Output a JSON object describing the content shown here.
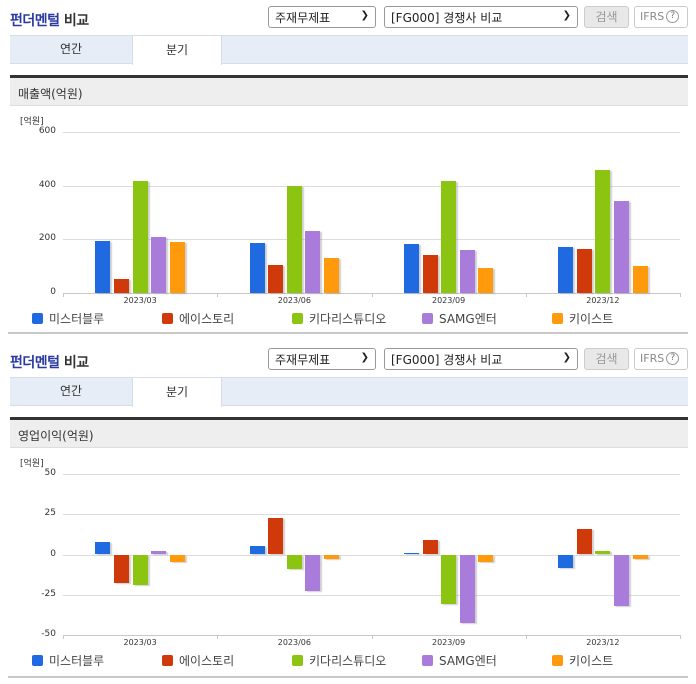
{
  "panels": [
    {
      "title_blue": "펀더멘털",
      "title_dark": "비교",
      "select1": "주재무제표",
      "select2": "[FG000] 경쟁사 비교",
      "search_label": "검색",
      "ifrs_label": "IFRS",
      "help_glyph": "?",
      "tabs": [
        {
          "label": "연간",
          "active": false
        },
        {
          "label": "분기",
          "active": true
        }
      ],
      "section_title": "매출액(억원)",
      "unit": "[억원]",
      "y_ticks": [
        "600",
        "400",
        "200",
        "0"
      ]
    },
    {
      "title_blue": "펀더멘털",
      "title_dark": "비교",
      "select1": "주재무제표",
      "select2": "[FG000] 경쟁사 비교",
      "search_label": "검색",
      "ifrs_label": "IFRS",
      "help_glyph": "?",
      "tabs": [
        {
          "label": "연간",
          "active": false
        },
        {
          "label": "분기",
          "active": true
        }
      ],
      "section_title": "영업이익(억원)",
      "unit": "[억원]",
      "y_ticks": [
        "50",
        "25",
        "0",
        "-25",
        "-50"
      ]
    }
  ],
  "legend": [
    {
      "name": "미스터블루",
      "color": "#1f6ae0"
    },
    {
      "name": "에이스토리",
      "color": "#d03a0a"
    },
    {
      "name": "키다리스튜디오",
      "color": "#8cc412"
    },
    {
      "name": "SAMG엔터",
      "color": "#a97cdb"
    },
    {
      "name": "키이스트",
      "color": "#ff9a0c"
    }
  ],
  "chart_data": [
    {
      "type": "bar",
      "title": "매출액(억원)",
      "xlabel": "",
      "ylabel": "[억원]",
      "ylim": [
        0,
        600
      ],
      "yticks": [
        0,
        200,
        400,
        600
      ],
      "grid": true,
      "legend_position": "bottom",
      "categories": [
        "2023/03",
        "2023/06",
        "2023/09",
        "2023/12"
      ],
      "series": [
        {
          "name": "미스터블루",
          "color": "#1f6ae0",
          "values": [
            193,
            185,
            181,
            170
          ]
        },
        {
          "name": "에이스토리",
          "color": "#d03a0a",
          "values": [
            51,
            106,
            143,
            163
          ]
        },
        {
          "name": "키다리스튜디오",
          "color": "#8cc412",
          "values": [
            419,
            399,
            419,
            457
          ]
        },
        {
          "name": "SAMG엔터",
          "color": "#a97cdb",
          "values": [
            207,
            232,
            159,
            342
          ]
        },
        {
          "name": "키이스트",
          "color": "#ff9a0c",
          "values": [
            190,
            129,
            94,
            99
          ]
        }
      ]
    },
    {
      "type": "bar",
      "title": "영업이익(억원)",
      "xlabel": "",
      "ylabel": "[억원]",
      "ylim": [
        -50,
        50
      ],
      "yticks": [
        -50,
        -25,
        0,
        25,
        50
      ],
      "grid": true,
      "legend_position": "bottom",
      "categories": [
        "2023/03",
        "2023/06",
        "2023/09",
        "2023/12"
      ],
      "series": [
        {
          "name": "미스터블루",
          "color": "#1f6ae0",
          "values": [
            8,
            5.4,
            1,
            -8.3
          ]
        },
        {
          "name": "에이스토리",
          "color": "#d03a0a",
          "values": [
            -18,
            22.8,
            9.3,
            16
          ]
        },
        {
          "name": "키다리스튜디오",
          "color": "#8cc412",
          "values": [
            -19,
            -9.3,
            -30.7,
            2.3
          ]
        },
        {
          "name": "SAMG엔터",
          "color": "#a97cdb",
          "values": [
            2.3,
            -22.4,
            -42.5,
            -32
          ]
        },
        {
          "name": "키이스트",
          "color": "#ff9a0c",
          "values": [
            -4.4,
            -2.9,
            -4.6,
            -3.1
          ]
        }
      ]
    }
  ]
}
